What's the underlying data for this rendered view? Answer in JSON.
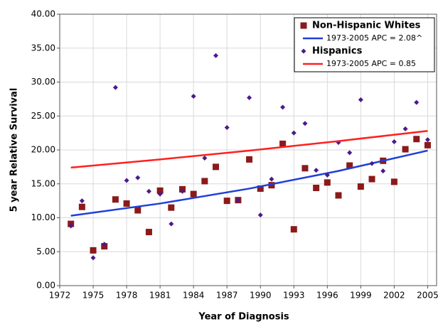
{
  "chart_data": {
    "type": "scatter",
    "x_label": "Year of Diagnosis",
    "y_label": "5 year Relative Survival",
    "xlim": [
      1972,
      2005.8
    ],
    "ylim": [
      0,
      40
    ],
    "xticks": [
      1972,
      1975,
      1978,
      1981,
      1984,
      1987,
      1990,
      1993,
      1996,
      1999,
      2002,
      2005
    ],
    "yticks": [
      {
        "value": 0,
        "label": "0.00"
      },
      {
        "value": 5,
        "label": "5.00"
      },
      {
        "value": 10,
        "label": "10.00"
      },
      {
        "value": 15,
        "label": "15.00"
      },
      {
        "value": 20,
        "label": "20.00"
      },
      {
        "value": 25,
        "label": "25.00"
      },
      {
        "value": 30,
        "label": "30.00"
      },
      {
        "value": 35,
        "label": "35.00"
      },
      {
        "value": 40,
        "label": "40.00"
      }
    ],
    "grid": true,
    "legend": "upper right",
    "series": [
      {
        "name": "Non-Hispanic Whites",
        "type": "scatter",
        "marker": "square",
        "color": "#8b1a1a",
        "x": [
          1973,
          1974,
          1975,
          1976,
          1977,
          1978,
          1979,
          1980,
          1981,
          1982,
          1983,
          1984,
          1985,
          1986,
          1987,
          1988,
          1989,
          1990,
          1991,
          1992,
          1993,
          1994,
          1995,
          1996,
          1997,
          1998,
          1999,
          2000,
          2001,
          2002,
          2003,
          2004,
          2005
        ],
        "values": [
          9.1,
          11.6,
          5.2,
          5.8,
          12.7,
          12.1,
          11.1,
          7.9,
          14.0,
          11.5,
          14.2,
          13.5,
          15.4,
          17.5,
          12.5,
          12.6,
          18.6,
          14.3,
          14.8,
          20.9,
          8.3,
          17.3,
          14.4,
          15.2,
          13.3,
          17.7,
          14.6,
          15.7,
          18.4,
          15.3,
          20.1,
          21.6,
          20.7
        ]
      },
      {
        "name": "1973-2005 APC = 2.08^",
        "type": "line",
        "color": "#1f3fd8",
        "x": [
          1973,
          1981,
          1989,
          1997,
          2005
        ],
        "values": [
          10.3,
          12.1,
          14.3,
          16.9,
          19.9
        ]
      },
      {
        "name": "Hispanics",
        "type": "scatter",
        "marker": "diamond",
        "color": "#4b1a8c",
        "x": [
          1973,
          1974,
          1975,
          1976,
          1977,
          1978,
          1979,
          1980,
          1981,
          1982,
          1983,
          1984,
          1985,
          1986,
          1987,
          1988,
          1989,
          1990,
          1991,
          1992,
          1993,
          1994,
          1995,
          1996,
          1997,
          1998,
          1999,
          2000,
          2001,
          2002,
          2003,
          2004,
          2005
        ],
        "values": [
          8.8,
          12.5,
          4.1,
          6.1,
          29.2,
          15.5,
          15.9,
          13.9,
          13.5,
          9.1,
          13.9,
          27.9,
          18.8,
          33.9,
          23.3,
          12.6,
          27.7,
          10.4,
          15.7,
          26.3,
          22.5,
          23.9,
          17.0,
          16.3,
          21.1,
          19.6,
          27.4,
          18.0,
          16.9,
          21.2,
          23.1,
          27.0,
          21.5
        ]
      },
      {
        "name": "1973-2005 APC = 0.85",
        "type": "line",
        "color": "#ff2020",
        "x": [
          1973,
          1981,
          1989,
          1997,
          2005
        ],
        "values": [
          17.4,
          18.6,
          19.9,
          21.3,
          22.8
        ]
      }
    ]
  }
}
